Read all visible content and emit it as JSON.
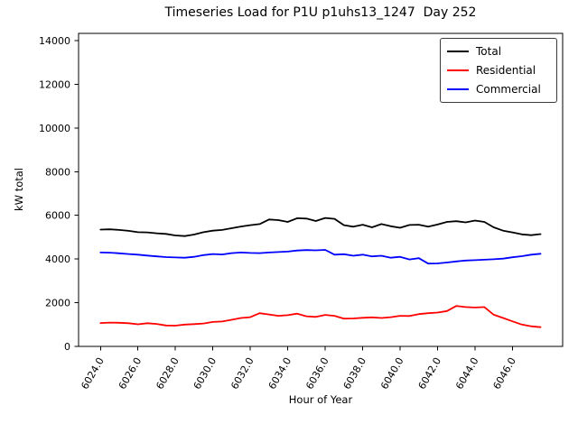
{
  "chart_data": {
    "type": "line",
    "title": "Timeseries Load for P1U p1uhs13_1247  Day 252",
    "xlabel": "Hour of Year",
    "ylabel": "kW total",
    "xlim": [
      6022.83,
      6048.68
    ],
    "ylim": [
      0,
      14330
    ],
    "xticks": [
      6024,
      6026,
      6028,
      6030,
      6032,
      6034,
      6036,
      6038,
      6040,
      6042,
      6044,
      6046
    ],
    "xtick_labels": [
      "6024.0",
      "6026.0",
      "6028.0",
      "6030.0",
      "6032.0",
      "6034.0",
      "6036.0",
      "6038.0",
      "6040.0",
      "6042.0",
      "6044.0",
      "6046.0"
    ],
    "yticks": [
      0,
      2000,
      4000,
      6000,
      8000,
      10000,
      12000,
      14000
    ],
    "ytick_labels": [
      "0",
      "2000",
      "4000",
      "6000",
      "8000",
      "10000",
      "12000",
      "14000"
    ],
    "grid": false,
    "legend_position": "upper right",
    "x": [
      6024.0,
      6024.5,
      6025.0,
      6025.5,
      6026.0,
      6026.5,
      6027.0,
      6027.5,
      6028.0,
      6028.5,
      6029.0,
      6029.5,
      6030.0,
      6030.5,
      6031.0,
      6031.5,
      6032.0,
      6032.5,
      6033.0,
      6033.5,
      6034.0,
      6034.5,
      6035.0,
      6035.5,
      6036.0,
      6036.5,
      6037.0,
      6037.5,
      6038.0,
      6038.5,
      6039.0,
      6039.5,
      6040.0,
      6040.5,
      6041.0,
      6041.5,
      6042.0,
      6042.5,
      6043.0,
      6043.5,
      6044.0,
      6044.5,
      6045.0,
      6045.5,
      6046.0,
      6046.5,
      6047.0,
      6047.5
    ],
    "series": [
      {
        "name": "Total",
        "color": "#000000",
        "values": [
          5350,
          5360,
          5330,
          5290,
          5230,
          5220,
          5180,
          5150,
          5080,
          5050,
          5120,
          5230,
          5300,
          5330,
          5410,
          5490,
          5550,
          5600,
          5810,
          5780,
          5700,
          5870,
          5850,
          5740,
          5880,
          5840,
          5550,
          5480,
          5570,
          5450,
          5600,
          5500,
          5430,
          5560,
          5570,
          5480,
          5580,
          5700,
          5730,
          5680,
          5760,
          5700,
          5450,
          5300,
          5220,
          5130,
          5090,
          5140
        ]
      },
      {
        "name": "Residential",
        "color": "#ff0000",
        "values": [
          1070,
          1090,
          1080,
          1060,
          1010,
          1060,
          1030,
          960,
          950,
          1000,
          1020,
          1050,
          1120,
          1140,
          1220,
          1300,
          1340,
          1520,
          1460,
          1400,
          1430,
          1500,
          1380,
          1350,
          1440,
          1400,
          1270,
          1280,
          1310,
          1330,
          1300,
          1340,
          1400,
          1390,
          1480,
          1520,
          1550,
          1620,
          1850,
          1800,
          1780,
          1800,
          1450,
          1300,
          1150,
          1000,
          920,
          880
        ]
      },
      {
        "name": "Commercial",
        "color": "#0000ff",
        "values": [
          4300,
          4290,
          4260,
          4230,
          4200,
          4160,
          4120,
          4090,
          4070,
          4060,
          4100,
          4180,
          4230,
          4210,
          4270,
          4300,
          4280,
          4270,
          4300,
          4320,
          4340,
          4390,
          4410,
          4400,
          4420,
          4200,
          4220,
          4150,
          4200,
          4120,
          4150,
          4060,
          4100,
          3980,
          4040,
          3790,
          3800,
          3840,
          3890,
          3930,
          3950,
          3970,
          3990,
          4020,
          4080,
          4130,
          4200,
          4240
        ]
      }
    ]
  }
}
